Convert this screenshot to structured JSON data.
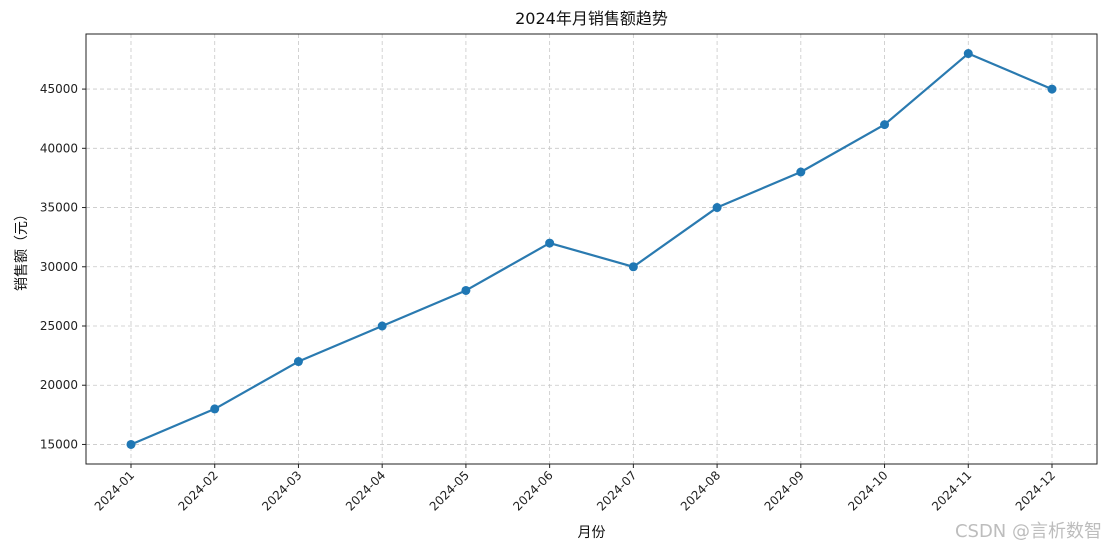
{
  "chart_data": {
    "type": "line",
    "title": "2024年月销售额趋势",
    "xlabel": "月份",
    "ylabel": "销售额（元）",
    "categories": [
      "2024-01",
      "2024-02",
      "2024-03",
      "2024-04",
      "2024-05",
      "2024-06",
      "2024-07",
      "2024-08",
      "2024-09",
      "2024-10",
      "2024-11",
      "2024-12"
    ],
    "series": [
      {
        "values": [
          15000,
          18000,
          22000,
          25000,
          28000,
          32000,
          30000,
          35000,
          38000,
          42000,
          48000,
          45000
        ]
      }
    ],
    "yticks": [
      15000,
      20000,
      25000,
      30000,
      35000,
      40000,
      45000
    ],
    "ylim": [
      13350,
      49650
    ],
    "grid": true,
    "grid_style": "dashed",
    "marker": "circle",
    "colors": {
      "line": "#2a7ab0",
      "marker": "#1f77b4",
      "grid": "#c8c8c8",
      "axes": "#222222"
    }
  },
  "watermark": "CSDN @言析数智"
}
